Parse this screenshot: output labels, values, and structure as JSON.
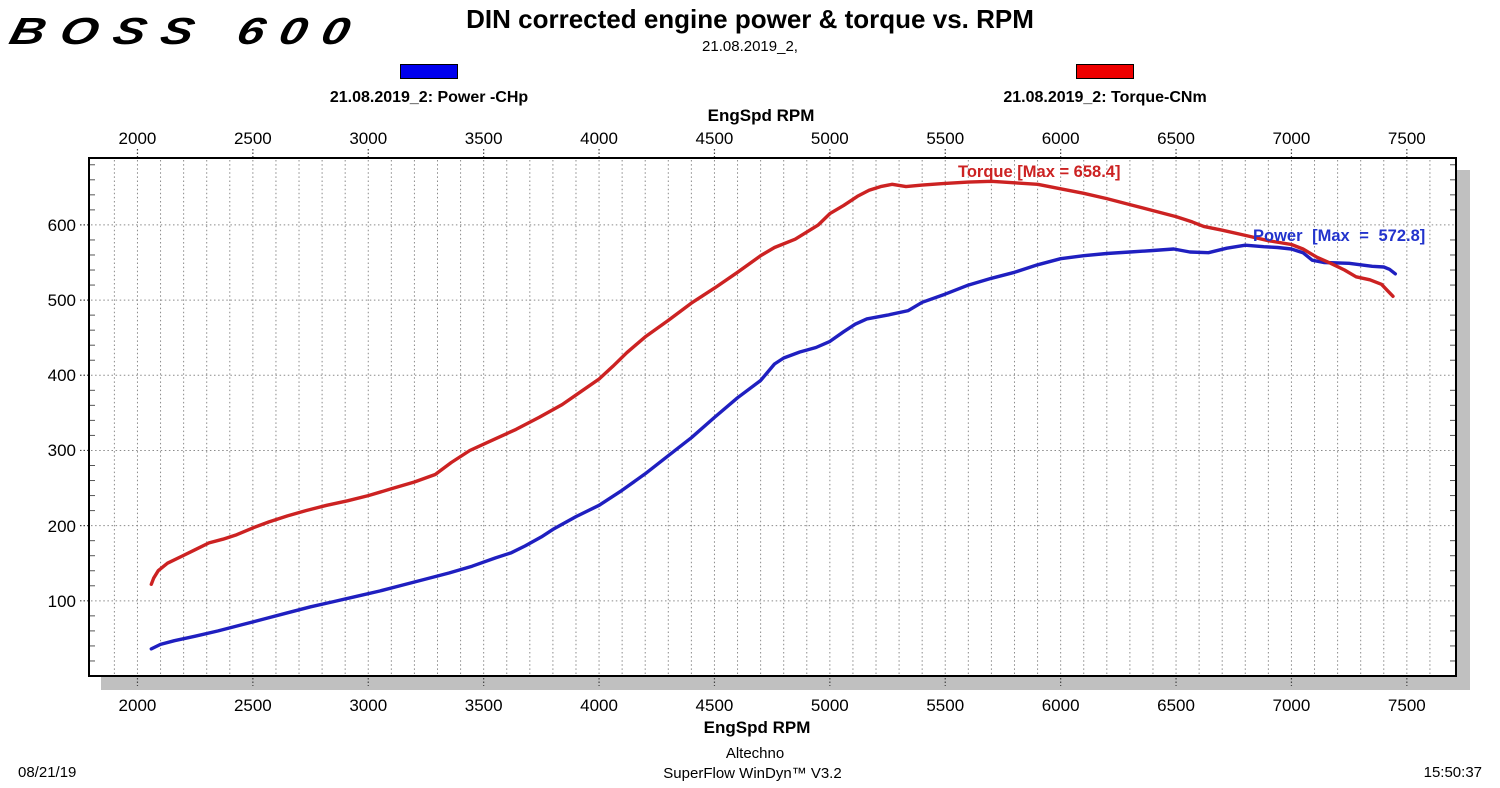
{
  "logo": "BOSS 600",
  "header": {
    "title": "DIN corrected engine power & torque vs. RPM",
    "subtitle": "21.08.2019_2,"
  },
  "legend": {
    "items": [
      {
        "label": "21.08.2019_2: Power -CHp",
        "color": "#0000ee"
      },
      {
        "label": "21.08.2019_2: Torque-CNm",
        "color": "#ee0000"
      }
    ]
  },
  "footer": {
    "facility": "Altechno",
    "software": "SuperFlow WinDyn™ V3.2",
    "date": "08/21/19",
    "time": "15:50:37"
  },
  "chart_data": {
    "type": "line",
    "title": "DIN corrected engine power & torque vs. RPM",
    "xlabel": "EngSpd RPM",
    "ylabel": "",
    "grid": "dotted",
    "grid_color": "#8a8a8a",
    "shadow_color": "#c0c0c0",
    "x_axis": {
      "label": "EngSpd RPM",
      "min": 1790,
      "max": 7713,
      "major_ticks": [
        2000,
        2500,
        3000,
        3500,
        4000,
        4500,
        5000,
        5500,
        6000,
        6500,
        7000,
        7500
      ],
      "minor_step": 100
    },
    "y_axis": {
      "min": 0,
      "max": 689,
      "major_ticks": [
        100,
        200,
        300,
        400,
        500,
        600
      ],
      "minor_step": 20
    },
    "annotations": [
      {
        "text": "Torque [Max = 658.4]",
        "color": "#cc2222"
      },
      {
        "text": "Power [Max = 572.8]",
        "color": "#2233cc"
      }
    ],
    "series": [
      {
        "name": "Power -CHp",
        "unit": "CHp",
        "color": "#1f1fc0",
        "max": 572.8,
        "points": [
          [
            2060,
            36
          ],
          [
            2100,
            42
          ],
          [
            2160,
            47
          ],
          [
            2250,
            53
          ],
          [
            2350,
            60
          ],
          [
            2450,
            68
          ],
          [
            2550,
            76
          ],
          [
            2650,
            84
          ],
          [
            2750,
            92
          ],
          [
            2850,
            99
          ],
          [
            2950,
            106
          ],
          [
            3050,
            113
          ],
          [
            3150,
            121
          ],
          [
            3250,
            129
          ],
          [
            3350,
            137
          ],
          [
            3450,
            146
          ],
          [
            3550,
            157
          ],
          [
            3620,
            164
          ],
          [
            3680,
            173
          ],
          [
            3750,
            185
          ],
          [
            3800,
            195
          ],
          [
            3900,
            212
          ],
          [
            4000,
            227
          ],
          [
            4100,
            247
          ],
          [
            4200,
            269
          ],
          [
            4300,
            293
          ],
          [
            4400,
            317
          ],
          [
            4500,
            344
          ],
          [
            4600,
            370
          ],
          [
            4700,
            393
          ],
          [
            4760,
            415
          ],
          [
            4800,
            423
          ],
          [
            4870,
            431
          ],
          [
            4940,
            437
          ],
          [
            5000,
            445
          ],
          [
            5060,
            458
          ],
          [
            5110,
            468
          ],
          [
            5160,
            475
          ],
          [
            5250,
            480
          ],
          [
            5340,
            486
          ],
          [
            5400,
            497
          ],
          [
            5500,
            508
          ],
          [
            5600,
            520
          ],
          [
            5700,
            529
          ],
          [
            5800,
            537
          ],
          [
            5900,
            547
          ],
          [
            6000,
            555
          ],
          [
            6100,
            559
          ],
          [
            6200,
            562
          ],
          [
            6300,
            564
          ],
          [
            6400,
            566
          ],
          [
            6490,
            568
          ],
          [
            6560,
            564
          ],
          [
            6640,
            563
          ],
          [
            6720,
            569
          ],
          [
            6800,
            573
          ],
          [
            6880,
            571
          ],
          [
            6940,
            570
          ],
          [
            7000,
            568
          ],
          [
            7050,
            563
          ],
          [
            7090,
            553
          ],
          [
            7140,
            550
          ],
          [
            7250,
            549
          ],
          [
            7300,
            547
          ],
          [
            7350,
            545
          ],
          [
            7400,
            544
          ],
          [
            7425,
            541
          ],
          [
            7450,
            535
          ]
        ]
      },
      {
        "name": "Torque-CNm",
        "unit": "CNm",
        "color": "#cc2222",
        "max": 658.4,
        "points": [
          [
            2060,
            122
          ],
          [
            2070,
            130
          ],
          [
            2090,
            140
          ],
          [
            2130,
            150
          ],
          [
            2190,
            159
          ],
          [
            2250,
            168
          ],
          [
            2310,
            177
          ],
          [
            2370,
            182
          ],
          [
            2430,
            188
          ],
          [
            2500,
            197
          ],
          [
            2570,
            205
          ],
          [
            2650,
            213
          ],
          [
            2730,
            220
          ],
          [
            2820,
            227
          ],
          [
            2910,
            233
          ],
          [
            3000,
            240
          ],
          [
            3100,
            249
          ],
          [
            3200,
            258
          ],
          [
            3290,
            268
          ],
          [
            3360,
            284
          ],
          [
            3440,
            300
          ],
          [
            3540,
            314
          ],
          [
            3640,
            328
          ],
          [
            3740,
            344
          ],
          [
            3840,
            361
          ],
          [
            3920,
            378
          ],
          [
            4000,
            395
          ],
          [
            4060,
            412
          ],
          [
            4120,
            430
          ],
          [
            4200,
            451
          ],
          [
            4300,
            473
          ],
          [
            4400,
            496
          ],
          [
            4500,
            516
          ],
          [
            4600,
            537
          ],
          [
            4700,
            559
          ],
          [
            4760,
            570
          ],
          [
            4850,
            581
          ],
          [
            4950,
            600
          ],
          [
            5000,
            615
          ],
          [
            5060,
            626
          ],
          [
            5120,
            638
          ],
          [
            5170,
            646
          ],
          [
            5220,
            651
          ],
          [
            5270,
            654
          ],
          [
            5330,
            651
          ],
          [
            5400,
            653
          ],
          [
            5490,
            655
          ],
          [
            5600,
            657
          ],
          [
            5700,
            658
          ],
          [
            5800,
            656
          ],
          [
            5900,
            654
          ],
          [
            6000,
            648
          ],
          [
            6100,
            642
          ],
          [
            6200,
            635
          ],
          [
            6300,
            627
          ],
          [
            6400,
            619
          ],
          [
            6500,
            611
          ],
          [
            6570,
            604
          ],
          [
            6620,
            598
          ],
          [
            6700,
            593
          ],
          [
            6800,
            586
          ],
          [
            6900,
            579
          ],
          [
            7000,
            574
          ],
          [
            7050,
            568
          ],
          [
            7110,
            557
          ],
          [
            7170,
            549
          ],
          [
            7230,
            540
          ],
          [
            7280,
            531
          ],
          [
            7340,
            527
          ],
          [
            7390,
            521
          ],
          [
            7415,
            513
          ],
          [
            7440,
            505
          ]
        ]
      }
    ]
  }
}
